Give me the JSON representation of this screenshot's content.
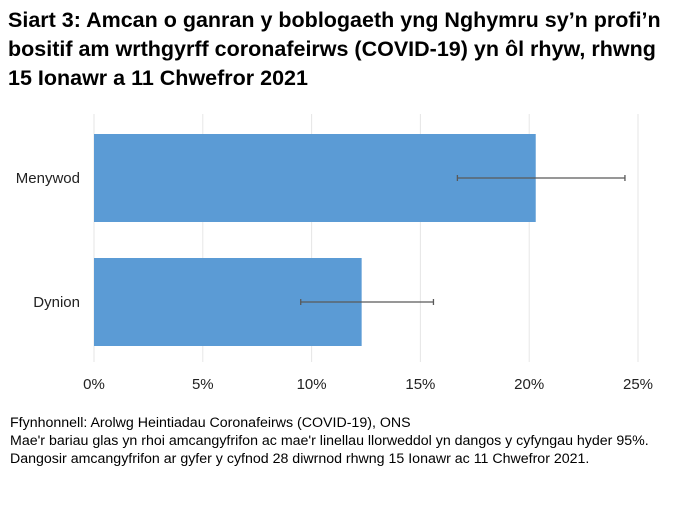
{
  "chart_data": {
    "type": "bar",
    "orientation": "horizontal",
    "title": "Siart 3: Amcan o ganran y boblogaeth yng Nghymru sy’n profi’n bositif am wrthgyrff coronafeirws (COVID-19) yn ôl rhyw, rhwng 15 Ionawr a 11 Chwefror 2021",
    "categories": [
      "Menywod",
      "Dynion"
    ],
    "values": [
      20.3,
      12.3
    ],
    "error_lower": [
      16.7,
      9.5
    ],
    "error_upper": [
      24.4,
      15.6
    ],
    "xlim": [
      0,
      25
    ],
    "xticks": [
      0,
      5,
      10,
      15,
      20,
      25
    ],
    "xtick_labels": [
      "0%",
      "5%",
      "10%",
      "15%",
      "20%",
      "25%"
    ],
    "xlabel": "",
    "ylabel": "",
    "grid": "vertical",
    "bar_color": "#5b9bd5",
    "error_color": "#595959"
  },
  "notes": {
    "source": "Ffynhonnell: Arolwg Heintiadau Coronafeirws (COVID-19), ONS",
    "description": "Mae'r bariau glas yn rhoi amcangyfrifon ac mae'r linellau llorweddol yn dangos y cyfyngau hyder 95%. Dangosir amcangyfrifon ar gyfer y cyfnod 28 diwrnod rhwng 15 Ionawr ac 11 Chwefror 2021."
  }
}
